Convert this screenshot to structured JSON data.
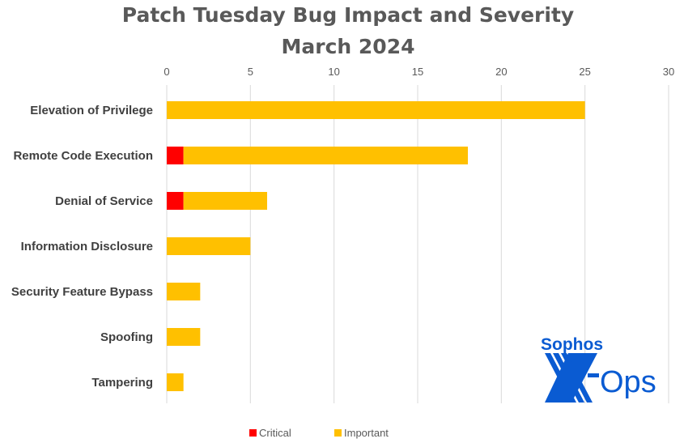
{
  "chart_data": {
    "type": "bar",
    "orientation": "horizontal",
    "stacked": true,
    "title": [
      "Patch Tuesday Bug Impact and Severity",
      "March 2024"
    ],
    "categories": [
      "Elevation of Privilege",
      "Remote Code Execution",
      "Denial of Service",
      "Information Disclosure",
      "Security Feature Bypass",
      "Spoofing",
      "Tampering"
    ],
    "series": [
      {
        "name": "Critical",
        "color": "#FF0000",
        "values": [
          0,
          1,
          1,
          0,
          0,
          0,
          0
        ]
      },
      {
        "name": "Important",
        "color": "#FFC000",
        "values": [
          25,
          17,
          5,
          5,
          2,
          2,
          1
        ]
      }
    ],
    "xlim": [
      0,
      30
    ],
    "xticks": [
      0,
      5,
      10,
      15,
      20,
      25,
      30
    ],
    "x_axis_position": "top",
    "grid": true,
    "legend": "bottom"
  },
  "logo": {
    "text_top": "Sophos",
    "text_main": "X-Ops",
    "color": "#0A5BD2"
  }
}
